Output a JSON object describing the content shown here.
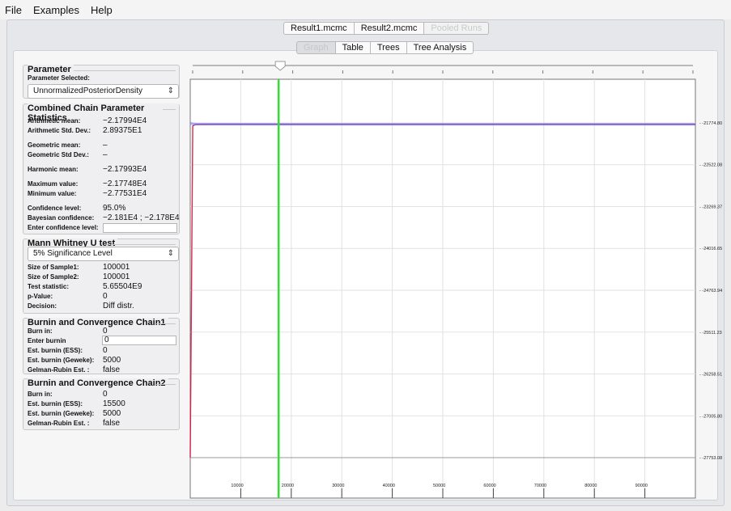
{
  "menu": [
    "File",
    "Examples",
    "Help"
  ],
  "file_tabs": [
    {
      "label": "Result1.mcmc",
      "state": "normal"
    },
    {
      "label": "Result2.mcmc",
      "state": "normal"
    },
    {
      "label": "Pooled Runs",
      "state": "disabled"
    }
  ],
  "view_tabs": [
    {
      "label": "Graph",
      "state": "active"
    },
    {
      "label": "Table",
      "state": "normal"
    },
    {
      "label": "Trees",
      "state": "normal"
    },
    {
      "label": "Tree Analysis",
      "state": "normal"
    }
  ],
  "parameter": {
    "title": "Parameter",
    "selected_label": "Parameter Selected:",
    "selected_value": "UnnormalizedPosteriorDensity"
  },
  "stats": {
    "title": "Combined Chain Parameter Statistics",
    "rows": [
      {
        "label": "Arithmetic mean:",
        "value": "−2.17994E4"
      },
      {
        "label": "Arithmetic Std. Dev.:",
        "value": "2.89375E1"
      },
      {
        "label": "Geometric mean:",
        "value": "–"
      },
      {
        "label": "Geometric Std Dev.:",
        "value": "–"
      },
      {
        "label": "Harmonic mean:",
        "value": "−2.17993E4"
      },
      {
        "label": "Maximum value:",
        "value": "−2.17748E4"
      },
      {
        "label": "Minimum value:",
        "value": "−2.77531E4"
      },
      {
        "label": "Confidence level:",
        "value": "95.0%"
      },
      {
        "label": "Bayesian confidence:",
        "value": "−2.181E4 ; −2.178E4"
      }
    ],
    "enter_confidence_label": "Enter confidence level:",
    "enter_confidence_value": ""
  },
  "mann_whitney": {
    "title": "Mann Whitney U test",
    "significance": "5% Significance Level",
    "rows": [
      {
        "label": "Size of Sample1:",
        "value": "100001"
      },
      {
        "label": "Size of Sample2:",
        "value": "100001"
      },
      {
        "label": "Test statistic:",
        "value": "5.65504E9"
      },
      {
        "label": "p-Value:",
        "value": "0"
      },
      {
        "label": "Decision:",
        "value": "Diff distr."
      }
    ]
  },
  "chain1": {
    "title": "Burnin and Convergence Chain1",
    "burn_in_label": "Burn in:",
    "burn_in_value": "0",
    "enter_burnin_label": "Enter burnin",
    "enter_burnin_value": "0",
    "rows": [
      {
        "label": "Est. burnin (ESS):",
        "value": "0"
      },
      {
        "label": "Est. burnin (Geweke):",
        "value": "5000"
      },
      {
        "label": "Gelman-Rubin Est. :",
        "value": "false"
      }
    ]
  },
  "chain2": {
    "title": "Burnin and Convergence Chain2",
    "rows": [
      {
        "label": "Burn in:",
        "value": "0"
      },
      {
        "label": "Est. burnin (ESS):",
        "value": "15500"
      },
      {
        "label": "Est. burnin (Geweke):",
        "value": "5000"
      },
      {
        "label": "Gelman-Rubin Est. :",
        "value": "false"
      }
    ]
  },
  "burnin_slider": {
    "min": 0,
    "max": 100000,
    "value": 17500,
    "ticks": 11
  },
  "colors": {
    "chain1": "#d2143c",
    "chain2": "#5a6bff",
    "burnin_line": "#33dd33"
  },
  "chart_data": {
    "type": "line",
    "xlim": [
      0,
      100000
    ],
    "ylim": [
      -27753.08,
      -21774.8
    ],
    "x_ticks": [
      10000,
      20000,
      30000,
      40000,
      50000,
      60000,
      70000,
      80000,
      90000
    ],
    "x_tick_labels": [
      "10000",
      "20000",
      "30000",
      "40000",
      "50000",
      "60000",
      "70000",
      "80000",
      "90000"
    ],
    "y_ticks": [
      -21774.8,
      -22522.08,
      -23269.37,
      -24016.65,
      -24763.94,
      -25511.23,
      -26258.51,
      -27005.8,
      -27753.08
    ],
    "y_tick_labels": [
      "- -21774.80",
      "- -22522.08",
      "- -23269.37",
      "- -24016.65",
      "- -24763.94",
      "- -25511.23",
      "- -26258.51",
      "- -27005.80",
      "- -27753.08"
    ],
    "burnin_marker_x": 17500,
    "grid": true,
    "series": [
      {
        "x": [
          0,
          500,
          1000,
          5000,
          20000,
          40000,
          60000,
          80000,
          100000
        ],
        "values": [
          -27753,
          -21830,
          -21805,
          -21800,
          -21799,
          -21800,
          -21799,
          -21800,
          -21799
        ]
      },
      {
        "x": [
          0,
          500,
          1000,
          5000,
          20000,
          40000,
          60000,
          80000,
          100000
        ],
        "values": [
          -21780,
          -21790,
          -21795,
          -21798,
          -21799,
          -21800,
          -21799,
          -21800,
          -21799
        ]
      }
    ]
  }
}
